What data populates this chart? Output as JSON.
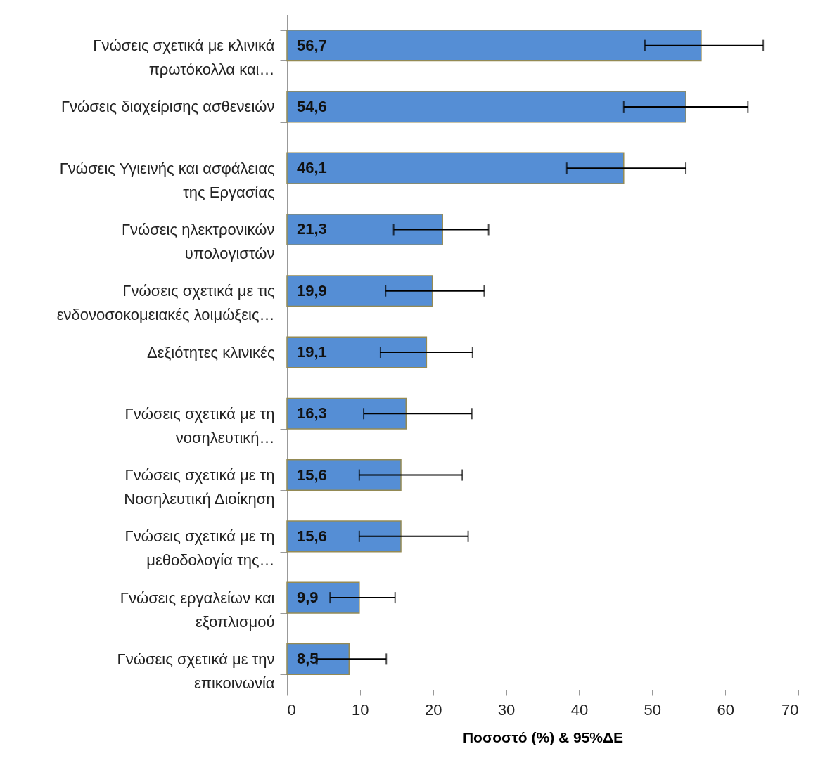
{
  "chart_data": {
    "type": "bar",
    "orientation": "horizontal",
    "xlabel": "Ποσοστό (%) & 95%ΔΕ",
    "categories": [
      "Γνώσεις σχετικά με κλινικά πρωτόκολλα και…",
      "Γνώσεις διαχείρισης ασθενειών",
      "Γνώσεις Υγιεινής και ασφάλειας της Εργασίας",
      "Γνώσεις ηλεκτρονικών υπολογιστών",
      "Γνώσεις σχετικά με τις ενδονοσοκομειακές λοιμώξεις…",
      "Δεξιότητες κλινικές",
      "Γνώσεις σχετικά με τη νοσηλευτική…",
      "Γνώσεις σχετικά με τη Νοσηλευτική Διοίκηση",
      "Γνώσεις σχετικά με τη μεθοδολογία της…",
      "Γνώσεις εργαλείων και εξοπλισμού",
      "Γνώσεις σχετικά με την επικοινωνία"
    ],
    "values": [
      56.7,
      54.6,
      46.1,
      21.3,
      19.9,
      19.1,
      16.3,
      15.6,
      15.6,
      9.9,
      8.5
    ],
    "value_labels": [
      "56,7",
      "54,6",
      "46,1",
      "21,3",
      "19,9",
      "19,1",
      "16,3",
      "15,6",
      "15,6",
      "9,9",
      "8,5"
    ],
    "errors": [
      [
        49.0,
        65.2
      ],
      [
        46.1,
        63.1
      ],
      [
        38.3,
        54.6
      ],
      [
        14.6,
        27.6
      ],
      [
        13.5,
        27.0
      ],
      [
        12.8,
        25.4
      ],
      [
        10.5,
        25.3
      ],
      [
        9.9,
        24.0
      ],
      [
        9.9,
        24.8
      ],
      [
        5.9,
        14.8
      ],
      [
        4.1,
        13.6
      ]
    ],
    "color": "#558ed5",
    "xlim": [
      0,
      70
    ],
    "xticks": [
      0,
      10,
      20,
      30,
      40,
      50,
      60,
      70
    ],
    "grid": false
  }
}
